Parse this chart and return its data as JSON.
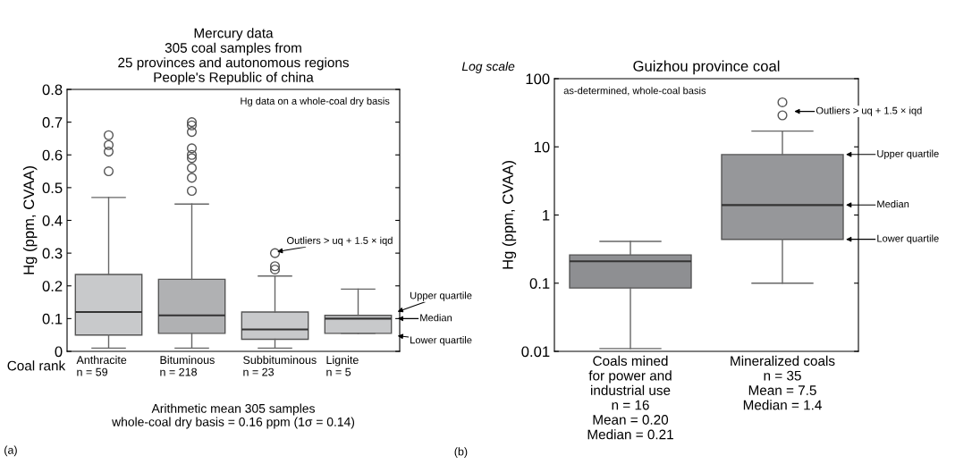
{
  "chart_data": [
    {
      "type": "box",
      "title": "Mercury data\n305 coal samples from\n25 provinces and autonomous regions\nPeople's Republic of china",
      "xlabel": "Coal rank",
      "ylabel": "Hg (ppm, CVAA)",
      "categories": [
        "Anthracite\nn = 59",
        "Bituminous\nn = 218",
        "Subbituminous\nn = 23",
        "Lignite\nn = 5"
      ],
      "colors": [
        "#c8c9cb",
        "#b0b1b3",
        "#c8c9cb",
        "#c8c9cb"
      ],
      "boxes": [
        {
          "low": 0.01,
          "q1": 0.05,
          "median": 0.12,
          "q3": 0.235,
          "high": 0.47,
          "outliers": [
            0.55,
            0.61,
            0.63,
            0.66
          ]
        },
        {
          "low": 0.01,
          "q1": 0.055,
          "median": 0.11,
          "q3": 0.22,
          "high": 0.45,
          "outliers": [
            0.49,
            0.53,
            0.56,
            0.59,
            0.6,
            0.62,
            0.67,
            0.69,
            0.7
          ]
        },
        {
          "low": 0.01,
          "q1": 0.037,
          "median": 0.067,
          "q3": 0.12,
          "high": 0.23,
          "outliers": [
            0.25,
            0.26,
            0.3
          ]
        },
        {
          "low": 0.055,
          "q1": 0.055,
          "median": 0.1,
          "q3": 0.11,
          "high": 0.19
        }
      ],
      "ylim": [
        0,
        0.8
      ],
      "yticks": [
        {
          "value": 0,
          "label": "0"
        },
        0.1,
        0.2,
        0.3,
        0.4,
        0.5,
        0.6,
        0.7,
        0.8
      ],
      "annotations": [
        "Hg data on a whole-coal dry basis",
        "Outliers > uq + 1.5 × iqd",
        "Upper quartile",
        "Median",
        "Lower quartile",
        "Arithmetic mean 305 samples\nwhole-coal dry basis = 0.16 ppm (1σ = 0.14)",
        "(a)"
      ]
    },
    {
      "type": "box",
      "title": "Guizhou province coal",
      "ylabel": "Hg (ppm, CVAA)",
      "log": true,
      "categories": [
        "Coals mined\nfor power and\nindustrial use\nn = 16\nMean = 0.20\nMedian = 0.21",
        "Mineralized coals\nn = 35\nMean = 7.5\nMedian = 1.4"
      ],
      "colors": [
        "#8e8f92",
        "#96979a"
      ],
      "boxes": [
        {
          "low": 0.011,
          "q1": 0.085,
          "median": 0.21,
          "q3": 0.26,
          "high": 0.41
        },
        {
          "low": 0.1,
          "q1": 0.44,
          "median": 1.4,
          "q3": 7.7,
          "high": 17,
          "outliers": [
            29,
            45
          ]
        }
      ],
      "ylim": [
        0.01,
        100
      ],
      "yticks": [
        0.01,
        0.1,
        1,
        10,
        100
      ],
      "annotations": [
        "Log scale",
        "as-determined, whole-coal basis",
        "Outliers > uq + 1.5 × iqd",
        "Upper quartile",
        "Median",
        "Lower quartile",
        "(b)"
      ]
    }
  ]
}
